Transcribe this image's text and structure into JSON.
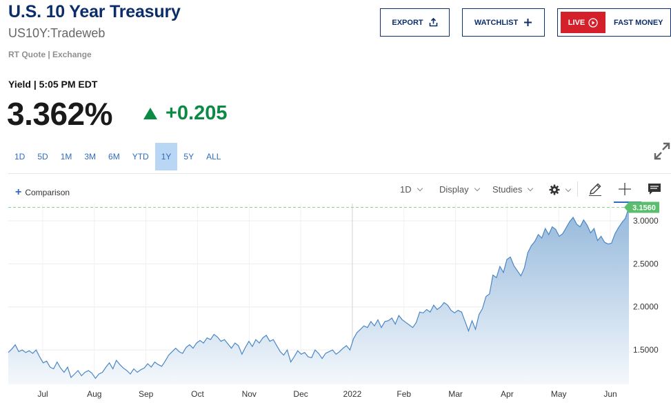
{
  "header": {
    "title": "U.S. 10 Year Treasury",
    "symbol": "US10Y:Tradeweb",
    "quote_source": "RT Quote | Exchange"
  },
  "actions": {
    "export_label": "EXPORT",
    "watchlist_label": "WATCHLIST",
    "live_label": "LIVE",
    "live_show": "FAST MONEY"
  },
  "quote": {
    "yield_label": "Yield | 5:05 PM EDT",
    "price": "3.362%",
    "change": "+0.205",
    "change_color": "#0b8a43"
  },
  "ranges": [
    "1D",
    "5D",
    "1M",
    "3M",
    "6M",
    "YTD",
    "1Y",
    "5Y",
    "ALL"
  ],
  "active_range": "1Y",
  "toolbar": {
    "comparison_label": "Comparison",
    "interval_label": "1D",
    "display_label": "Display",
    "studies_label": "Studies",
    "icons": [
      "gear-icon",
      "pencil-icon",
      "crosshair-icon",
      "comment-icon"
    ]
  },
  "chart_data": {
    "type": "area",
    "x_tick_labels": [
      "Jul",
      "Aug",
      "Sep",
      "Oct",
      "Nov",
      "Dec",
      "2022",
      "Feb",
      "Mar",
      "Apr",
      "May",
      "Jun"
    ],
    "y_tick_labels": [
      "1.5000",
      "2.0000",
      "2.5000",
      "3.0000"
    ],
    "ylim": [
      1.1,
      3.2
    ],
    "last_value_label": "3.1560",
    "last_value": 3.156,
    "grid": true,
    "line_color": "#4a86c5",
    "series": [
      {
        "values": [
          1.47,
          1.51,
          1.56,
          1.48,
          1.5,
          1.47,
          1.49,
          1.46,
          1.5,
          1.42,
          1.35,
          1.37,
          1.3,
          1.28,
          1.36,
          1.29,
          1.24,
          1.3,
          1.18,
          1.22,
          1.26,
          1.2,
          1.24,
          1.26,
          1.23,
          1.17,
          1.22,
          1.24,
          1.3,
          1.35,
          1.28,
          1.38,
          1.33,
          1.29,
          1.26,
          1.22,
          1.28,
          1.24,
          1.27,
          1.29,
          1.34,
          1.3,
          1.36,
          1.33,
          1.31,
          1.37,
          1.44,
          1.48,
          1.52,
          1.48,
          1.46,
          1.53,
          1.56,
          1.52,
          1.58,
          1.61,
          1.58,
          1.64,
          1.62,
          1.68,
          1.65,
          1.6,
          1.62,
          1.57,
          1.52,
          1.58,
          1.55,
          1.45,
          1.53,
          1.6,
          1.54,
          1.62,
          1.58,
          1.64,
          1.67,
          1.6,
          1.62,
          1.55,
          1.48,
          1.44,
          1.5,
          1.36,
          1.42,
          1.49,
          1.45,
          1.47,
          1.42,
          1.41,
          1.5,
          1.46,
          1.4,
          1.46,
          1.48,
          1.5,
          1.45,
          1.48,
          1.52,
          1.55,
          1.5,
          1.63,
          1.7,
          1.74,
          1.78,
          1.76,
          1.83,
          1.78,
          1.85,
          1.76,
          1.83,
          1.84,
          1.87,
          1.8,
          1.9,
          1.85,
          1.82,
          1.79,
          1.76,
          1.82,
          1.94,
          1.93,
          1.97,
          1.94,
          2.02,
          1.97,
          2.0,
          2.05,
          2.02,
          1.96,
          1.93,
          1.96,
          1.94,
          1.83,
          1.72,
          1.84,
          1.74,
          1.91,
          1.98,
          2.12,
          2.15,
          2.37,
          2.34,
          2.47,
          2.4,
          2.55,
          2.58,
          2.48,
          2.42,
          2.36,
          2.45,
          2.63,
          2.71,
          2.76,
          2.84,
          2.8,
          2.91,
          2.84,
          2.93,
          2.9,
          2.82,
          2.85,
          2.92,
          2.99,
          3.04,
          2.96,
          2.93,
          3.01,
          2.95,
          2.86,
          2.91,
          2.77,
          2.82,
          2.75,
          2.73,
          2.74,
          2.85,
          2.92,
          2.98,
          3.03,
          3.156
        ]
      }
    ]
  }
}
